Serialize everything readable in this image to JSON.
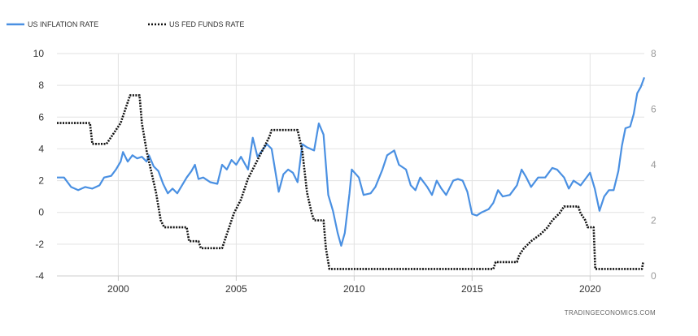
{
  "legend": [
    {
      "label": "US INFLATION RATE",
      "style": "solid",
      "color": "#4a90e2"
    },
    {
      "label": "US FED FUNDS RATE",
      "style": "dotted",
      "color": "#111111"
    }
  ],
  "source": "TRADINGECONOMICS.COM",
  "chart_data": {
    "type": "line",
    "title": "",
    "xlabel": "",
    "ylabel": "",
    "x_ticks": [
      "2000",
      "2005",
      "2010",
      "2015",
      "2020"
    ],
    "xlim": [
      1997.4,
      2022.3
    ],
    "y_left_ticks": [
      "10",
      "8",
      "6",
      "4",
      "2",
      "0",
      "-2",
      "-4"
    ],
    "y_left_lim": [
      -4,
      10
    ],
    "y_right_ticks": [
      "8",
      "6",
      "4",
      "2",
      "0"
    ],
    "y_right_lim": [
      0,
      8
    ],
    "grid": true,
    "legend_position": "top-left",
    "series": [
      {
        "name": "US INFLATION RATE",
        "axis": "left",
        "color": "#4a90e2",
        "points": [
          [
            1997.4,
            2.2
          ],
          [
            1997.7,
            2.2
          ],
          [
            1998.0,
            1.6
          ],
          [
            1998.3,
            1.4
          ],
          [
            1998.6,
            1.6
          ],
          [
            1998.9,
            1.5
          ],
          [
            1999.2,
            1.7
          ],
          [
            1999.4,
            2.2
          ],
          [
            1999.7,
            2.3
          ],
          [
            1999.9,
            2.7
          ],
          [
            2000.1,
            3.2
          ],
          [
            2000.2,
            3.8
          ],
          [
            2000.4,
            3.2
          ],
          [
            2000.6,
            3.6
          ],
          [
            2000.8,
            3.4
          ],
          [
            2001.0,
            3.5
          ],
          [
            2001.2,
            3.2
          ],
          [
            2001.3,
            3.6
          ],
          [
            2001.5,
            2.9
          ],
          [
            2001.7,
            2.6
          ],
          [
            2001.9,
            1.8
          ],
          [
            2002.1,
            1.2
          ],
          [
            2002.3,
            1.5
          ],
          [
            2002.5,
            1.2
          ],
          [
            2002.7,
            1.7
          ],
          [
            2002.9,
            2.2
          ],
          [
            2003.1,
            2.6
          ],
          [
            2003.25,
            3.0
          ],
          [
            2003.4,
            2.1
          ],
          [
            2003.6,
            2.2
          ],
          [
            2003.9,
            1.9
          ],
          [
            2004.2,
            1.8
          ],
          [
            2004.4,
            3.0
          ],
          [
            2004.6,
            2.7
          ],
          [
            2004.8,
            3.3
          ],
          [
            2005.0,
            3.0
          ],
          [
            2005.2,
            3.5
          ],
          [
            2005.5,
            2.7
          ],
          [
            2005.7,
            4.7
          ],
          [
            2005.9,
            3.5
          ],
          [
            2006.1,
            3.9
          ],
          [
            2006.3,
            4.3
          ],
          [
            2006.5,
            4.0
          ],
          [
            2006.7,
            2.2
          ],
          [
            2006.8,
            1.3
          ],
          [
            2007.0,
            2.4
          ],
          [
            2007.2,
            2.7
          ],
          [
            2007.4,
            2.5
          ],
          [
            2007.6,
            1.9
          ],
          [
            2007.8,
            4.3
          ],
          [
            2008.0,
            4.1
          ],
          [
            2008.3,
            3.9
          ],
          [
            2008.5,
            5.6
          ],
          [
            2008.7,
            4.9
          ],
          [
            2008.9,
            1.1
          ],
          [
            2009.1,
            0.1
          ],
          [
            2009.3,
            -1.3
          ],
          [
            2009.45,
            -2.1
          ],
          [
            2009.6,
            -1.3
          ],
          [
            2009.8,
            1.2
          ],
          [
            2009.9,
            2.7
          ],
          [
            2010.2,
            2.2
          ],
          [
            2010.4,
            1.1
          ],
          [
            2010.7,
            1.2
          ],
          [
            2010.9,
            1.6
          ],
          [
            2011.2,
            2.7
          ],
          [
            2011.4,
            3.6
          ],
          [
            2011.7,
            3.9
          ],
          [
            2011.9,
            3.0
          ],
          [
            2012.2,
            2.7
          ],
          [
            2012.4,
            1.7
          ],
          [
            2012.6,
            1.4
          ],
          [
            2012.8,
            2.2
          ],
          [
            2013.1,
            1.6
          ],
          [
            2013.3,
            1.1
          ],
          [
            2013.5,
            2.0
          ],
          [
            2013.7,
            1.5
          ],
          [
            2013.9,
            1.1
          ],
          [
            2014.2,
            2.0
          ],
          [
            2014.4,
            2.1
          ],
          [
            2014.6,
            2.0
          ],
          [
            2014.8,
            1.3
          ],
          [
            2015.0,
            -0.1
          ],
          [
            2015.2,
            -0.2
          ],
          [
            2015.4,
            0.0
          ],
          [
            2015.7,
            0.2
          ],
          [
            2015.9,
            0.6
          ],
          [
            2016.1,
            1.4
          ],
          [
            2016.3,
            1.0
          ],
          [
            2016.6,
            1.1
          ],
          [
            2016.9,
            1.7
          ],
          [
            2017.1,
            2.7
          ],
          [
            2017.3,
            2.2
          ],
          [
            2017.5,
            1.6
          ],
          [
            2017.8,
            2.2
          ],
          [
            2018.1,
            2.2
          ],
          [
            2018.4,
            2.8
          ],
          [
            2018.6,
            2.7
          ],
          [
            2018.9,
            2.2
          ],
          [
            2019.1,
            1.5
          ],
          [
            2019.3,
            2.0
          ],
          [
            2019.6,
            1.7
          ],
          [
            2019.8,
            2.1
          ],
          [
            2020.0,
            2.5
          ],
          [
            2020.2,
            1.5
          ],
          [
            2020.4,
            0.1
          ],
          [
            2020.6,
            1.0
          ],
          [
            2020.8,
            1.4
          ],
          [
            2021.0,
            1.4
          ],
          [
            2021.2,
            2.6
          ],
          [
            2021.35,
            4.2
          ],
          [
            2021.5,
            5.3
          ],
          [
            2021.7,
            5.4
          ],
          [
            2021.85,
            6.2
          ],
          [
            2022.0,
            7.5
          ],
          [
            2022.15,
            7.9
          ],
          [
            2022.3,
            8.5
          ]
        ]
      },
      {
        "name": "US FED FUNDS RATE",
        "axis": "right",
        "color": "#111111",
        "points": [
          [
            1997.4,
            5.5
          ],
          [
            1998.8,
            5.5
          ],
          [
            1998.9,
            4.75
          ],
          [
            1999.5,
            4.75
          ],
          [
            1999.7,
            5.0
          ],
          [
            1999.9,
            5.25
          ],
          [
            2000.1,
            5.5
          ],
          [
            2000.3,
            6.0
          ],
          [
            2000.5,
            6.5
          ],
          [
            2000.9,
            6.5
          ],
          [
            2001.0,
            5.5
          ],
          [
            2001.2,
            4.5
          ],
          [
            2001.4,
            3.75
          ],
          [
            2001.6,
            3.0
          ],
          [
            2001.8,
            2.0
          ],
          [
            2001.95,
            1.75
          ],
          [
            2002.9,
            1.75
          ],
          [
            2003.0,
            1.25
          ],
          [
            2003.4,
            1.25
          ],
          [
            2003.5,
            1.0
          ],
          [
            2004.4,
            1.0
          ],
          [
            2004.6,
            1.5
          ],
          [
            2004.9,
            2.25
          ],
          [
            2005.2,
            2.75
          ],
          [
            2005.5,
            3.5
          ],
          [
            2005.8,
            4.0
          ],
          [
            2006.1,
            4.5
          ],
          [
            2006.4,
            5.0
          ],
          [
            2006.5,
            5.25
          ],
          [
            2007.6,
            5.25
          ],
          [
            2007.8,
            4.5
          ],
          [
            2008.0,
            3.0
          ],
          [
            2008.2,
            2.25
          ],
          [
            2008.3,
            2.0
          ],
          [
            2008.7,
            2.0
          ],
          [
            2008.8,
            1.0
          ],
          [
            2008.95,
            0.25
          ],
          [
            2015.9,
            0.25
          ],
          [
            2016.0,
            0.5
          ],
          [
            2016.9,
            0.5
          ],
          [
            2017.0,
            0.75
          ],
          [
            2017.2,
            1.0
          ],
          [
            2017.5,
            1.25
          ],
          [
            2017.9,
            1.5
          ],
          [
            2018.2,
            1.75
          ],
          [
            2018.4,
            2.0
          ],
          [
            2018.7,
            2.25
          ],
          [
            2018.9,
            2.5
          ],
          [
            2019.5,
            2.5
          ],
          [
            2019.6,
            2.25
          ],
          [
            2019.8,
            2.0
          ],
          [
            2019.9,
            1.75
          ],
          [
            2020.15,
            1.75
          ],
          [
            2020.22,
            0.25
          ],
          [
            2022.2,
            0.25
          ],
          [
            2022.25,
            0.5
          ]
        ]
      }
    ]
  }
}
